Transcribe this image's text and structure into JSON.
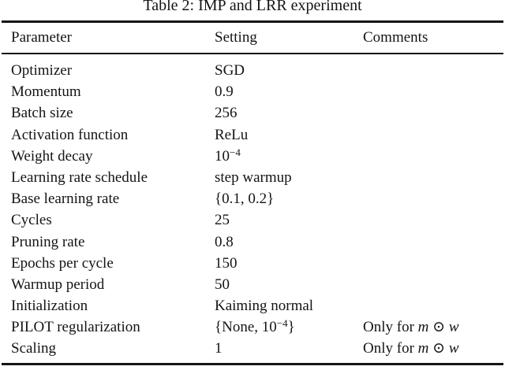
{
  "caption": "Table 2: IMP and LRR experiment",
  "table": {
    "columns": [
      "Parameter",
      "Setting",
      "Comments"
    ],
    "rows": [
      {
        "parameter": "Optimizer",
        "setting": "SGD"
      },
      {
        "parameter": "Momentum",
        "setting": "0.9"
      },
      {
        "parameter": "Batch size",
        "setting": "256"
      },
      {
        "parameter": "Activation function",
        "setting": "ReLu"
      },
      {
        "parameter": "Weight decay",
        "setting_base": "10",
        "setting_sup": "−4"
      },
      {
        "parameter": "Learning rate schedule",
        "setting": "step warmup"
      },
      {
        "parameter": "Base learning rate",
        "setting": "{0.1, 0.2}"
      },
      {
        "parameter": "Cycles",
        "setting": "25"
      },
      {
        "parameter": "Pruning rate",
        "setting": "0.8"
      },
      {
        "parameter": "Epochs per cycle",
        "setting": "150"
      },
      {
        "parameter": "Warmup period",
        "setting": "50"
      },
      {
        "parameter": "Initialization",
        "setting": "Kaiming normal"
      },
      {
        "parameter": "PILOT regularization",
        "setting_open": "{None, 10",
        "setting_sup": "−4",
        "setting_close": "}",
        "comment_text": "Only for ",
        "comment_var1": "m",
        "comment_op": " ⊙ ",
        "comment_var2": "w"
      },
      {
        "parameter": "Scaling",
        "setting": "1",
        "comment_text": "Only for ",
        "comment_var1": "m",
        "comment_op": " ⊙ ",
        "comment_var2": "w"
      }
    ]
  }
}
